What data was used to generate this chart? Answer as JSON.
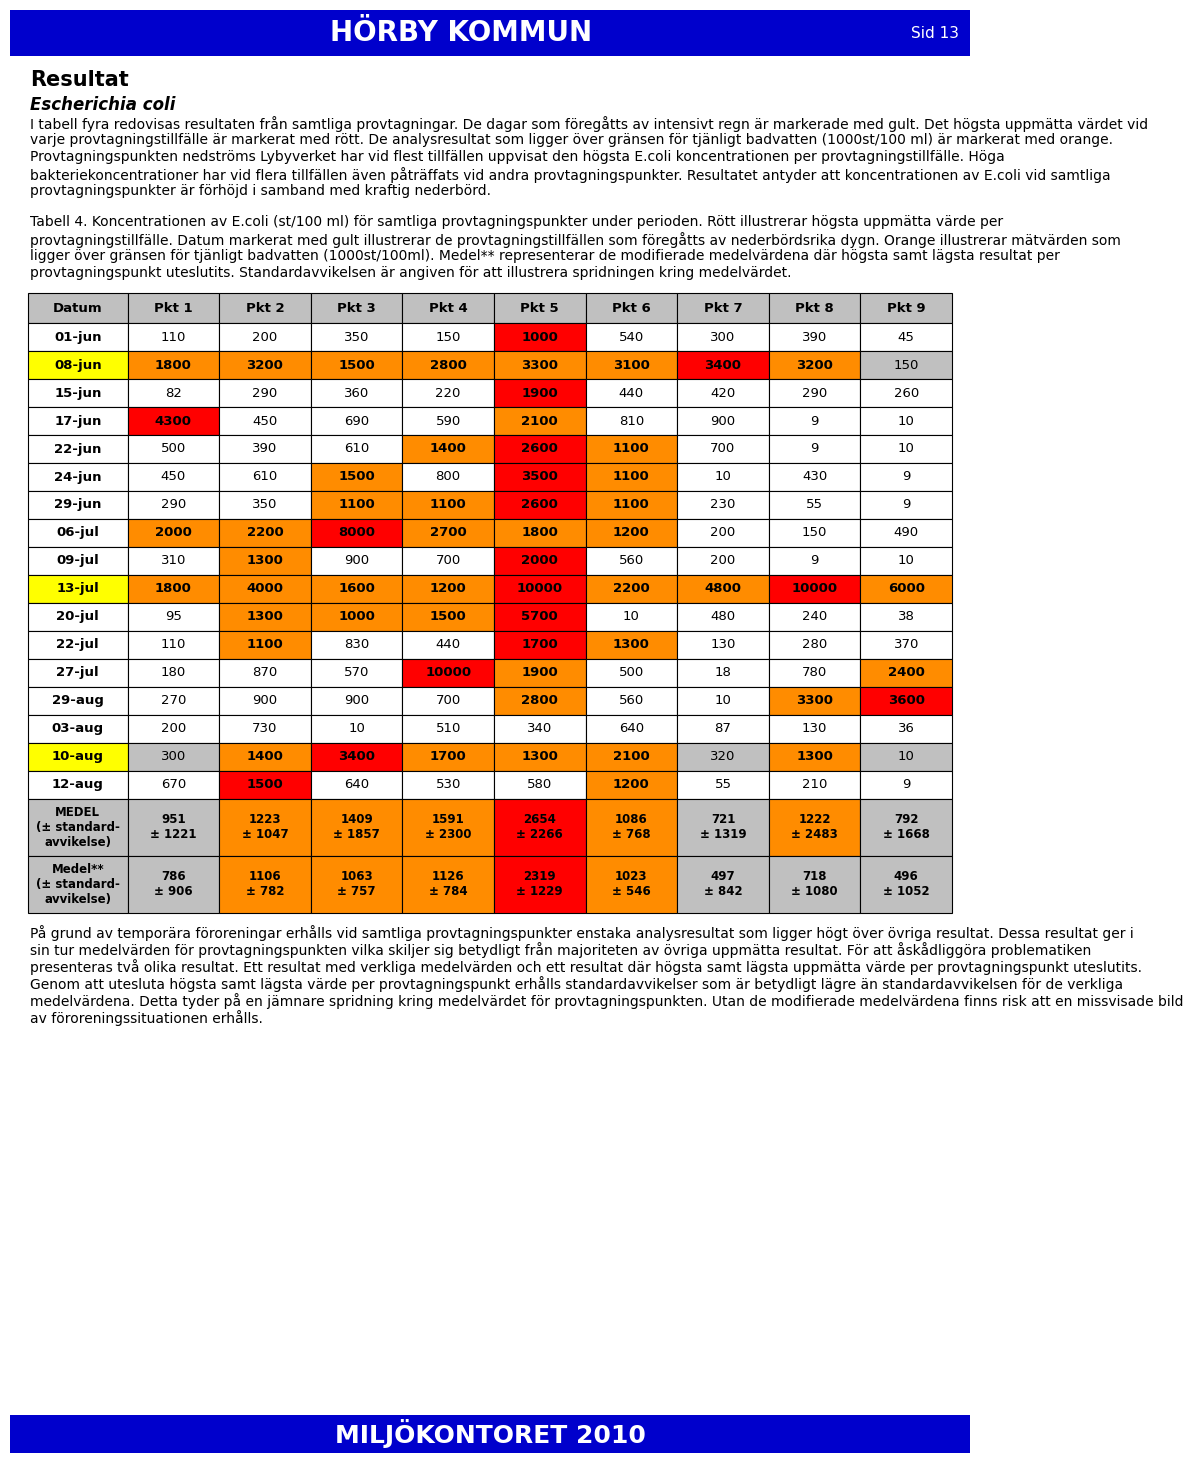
{
  "header_title": "HÖRBY KOMMUN",
  "header_sid": "Sid 13",
  "footer_title": "MILJÖKONTORET 2010",
  "header_bg": "#0000CC",
  "footer_bg": "#0000CC",
  "title1": "Resultat",
  "title2": "Escherichia coli",
  "intro_text": "I tabell fyra redovisas resultaten från samtliga provtagningar. De dagar som föregåtts av intensivt regn är markerade med gult. Det högsta uppmätta värdet vid varje provtagningstillfälle är markerat med rött. De analysresultat som ligger över gränsen för tjänligt badvatten (1000st/100 ml) är markerat med orange. Provtagningspunkten nedströms Lybyverket har vid flest tillfällen uppvisat den högsta E.coli koncentrationen per provtagningstillfälle. Höga bakteriekoncentrationer har vid flera tillfällen även påträffats vid andra provtagningspunkter. Resultatet antyder att koncentrationen av E.coli vid samtliga provtagningspunkter är förhöjd i samband med kraftig nederbörd.",
  "table_caption": "Tabell 4. Koncentrationen av E.coli (st/100 ml) för samtliga provtagningspunkter under perioden. Rött illustrerar högsta uppmätta värde per provtagningstillfälle. Datum markerat med gult illustrerar de provtagningstillfällen som föregåtts av nederbördsrika dygn. Orange illustrerar mätvärden som ligger över gränsen för tjänligt badvatten (1000st/100ml). Medel** representerar de modifierade medelvärdena där högsta samt lägsta resultat per provtagningspunkt uteslutits. Standardavvikelsen är angiven för att illustrera spridningen kring medelvärdet.",
  "footer_text": "På grund av temporära föroreningar erhålls vid samtliga provtagningspunkter enstaka analysresultat som ligger högt över övriga resultat. Dessa resultat ger i sin tur medelvärden för provtagningspunkten vilka skiljer sig betydligt från majoriteten av övriga uppmätta resultat. För att åskådliggöra problematiken presenteras två olika resultat. Ett resultat med verkliga medelvärden och ett resultat där högsta samt lägsta uppmätta värde per provtagningspunkt uteslutits. Genom att utesluta högsta samt lägsta värde per provtagningspunkt erhålls standardavvikelser som är betydligt lägre än standardavvikelsen för de verkliga medelvärdena. Detta tyder på en jämnare spridning kring medelvärdet för provtagningspunkten. Utan de modifierade medelvärdena finns risk att en missvisade bild av föroreningssituationen erhålls.",
  "col_headers": [
    "Datum",
    "Pkt 1",
    "Pkt 2",
    "Pkt 3",
    "Pkt 4",
    "Pkt 5",
    "Pkt 6",
    "Pkt 7",
    "Pkt 8",
    "Pkt 9"
  ],
  "rows": [
    {
      "date": "01-jun",
      "yellow_row": false,
      "values": [
        110,
        200,
        350,
        150,
        1000,
        540,
        300,
        390,
        45
      ]
    },
    {
      "date": "08-jun",
      "yellow_row": true,
      "values": [
        1800,
        3200,
        1500,
        2800,
        3300,
        3100,
        3400,
        3200,
        150
      ]
    },
    {
      "date": "15-jun",
      "yellow_row": false,
      "values": [
        82,
        290,
        360,
        220,
        1900,
        440,
        420,
        290,
        260
      ]
    },
    {
      "date": "17-jun",
      "yellow_row": false,
      "values": [
        4300,
        450,
        690,
        590,
        2100,
        810,
        900,
        9,
        10
      ]
    },
    {
      "date": "22-jun",
      "yellow_row": false,
      "values": [
        500,
        390,
        610,
        1400,
        2600,
        1100,
        700,
        9,
        10
      ]
    },
    {
      "date": "24-jun",
      "yellow_row": false,
      "values": [
        450,
        610,
        1500,
        800,
        3500,
        1100,
        10,
        430,
        9
      ]
    },
    {
      "date": "29-jun",
      "yellow_row": false,
      "values": [
        290,
        350,
        1100,
        1100,
        2600,
        1100,
        230,
        55,
        9
      ]
    },
    {
      "date": "06-jul",
      "yellow_row": false,
      "values": [
        2000,
        2200,
        8000,
        2700,
        1800,
        1200,
        200,
        150,
        490
      ]
    },
    {
      "date": "09-jul",
      "yellow_row": false,
      "values": [
        310,
        1300,
        900,
        700,
        2000,
        560,
        200,
        9,
        10
      ]
    },
    {
      "date": "13-jul",
      "yellow_row": true,
      "values": [
        1800,
        4000,
        1600,
        1200,
        10000,
        2200,
        4800,
        10000,
        6000
      ]
    },
    {
      "date": "20-jul",
      "yellow_row": false,
      "values": [
        95,
        1300,
        1000,
        1500,
        5700,
        10,
        480,
        240,
        38
      ]
    },
    {
      "date": "22-jul",
      "yellow_row": false,
      "values": [
        110,
        1100,
        830,
        440,
        1700,
        1300,
        130,
        280,
        370
      ]
    },
    {
      "date": "27-jul",
      "yellow_row": false,
      "values": [
        180,
        870,
        570,
        10000,
        1900,
        500,
        18,
        780,
        2400
      ]
    },
    {
      "date": "29-aug",
      "yellow_row": false,
      "values": [
        270,
        900,
        900,
        700,
        2800,
        560,
        10,
        3300,
        3600
      ]
    },
    {
      "date": "03-aug",
      "yellow_row": false,
      "values": [
        200,
        730,
        10,
        510,
        340,
        640,
        87,
        130,
        36
      ]
    },
    {
      "date": "10-aug",
      "yellow_row": true,
      "values": [
        300,
        1400,
        3400,
        1700,
        1300,
        2100,
        320,
        1300,
        10
      ]
    },
    {
      "date": "12-aug",
      "yellow_row": false,
      "values": [
        670,
        1500,
        640,
        530,
        580,
        1200,
        55,
        210,
        9
      ]
    }
  ],
  "medel_label": "MEDEL\n(± standard-\navvikelse)",
  "medel_values": [
    "951\n± 1221",
    "1223\n± 1047",
    "1409\n± 1857",
    "1591\n± 2300",
    "2654\n± 2266",
    "1086\n± 768",
    "721\n± 1319",
    "1222\n± 2483",
    "792\n± 1668"
  ],
  "medel_nums": [
    951,
    1223,
    1409,
    1591,
    2654,
    1086,
    721,
    1222,
    792
  ],
  "medel2_label": "Medel**\n(± standard-\navvikelse)",
  "medel2_values": [
    "786\n± 906",
    "1106\n± 782",
    "1063\n± 757",
    "1126\n± 784",
    "2319\n± 1229",
    "1023\n± 546",
    "497\n± 842",
    "718\n± 1080",
    "496\n± 1052"
  ],
  "medel2_nums": [
    786,
    1106,
    1063,
    1126,
    2319,
    1023,
    497,
    718,
    496
  ],
  "threshold": 1000,
  "color_red": "#FF0000",
  "color_orange": "#FF8C00",
  "color_yellow": "#FFFF00",
  "color_gray": "#C0C0C0",
  "color_white": "#FFFFFF",
  "color_black": "#000000"
}
